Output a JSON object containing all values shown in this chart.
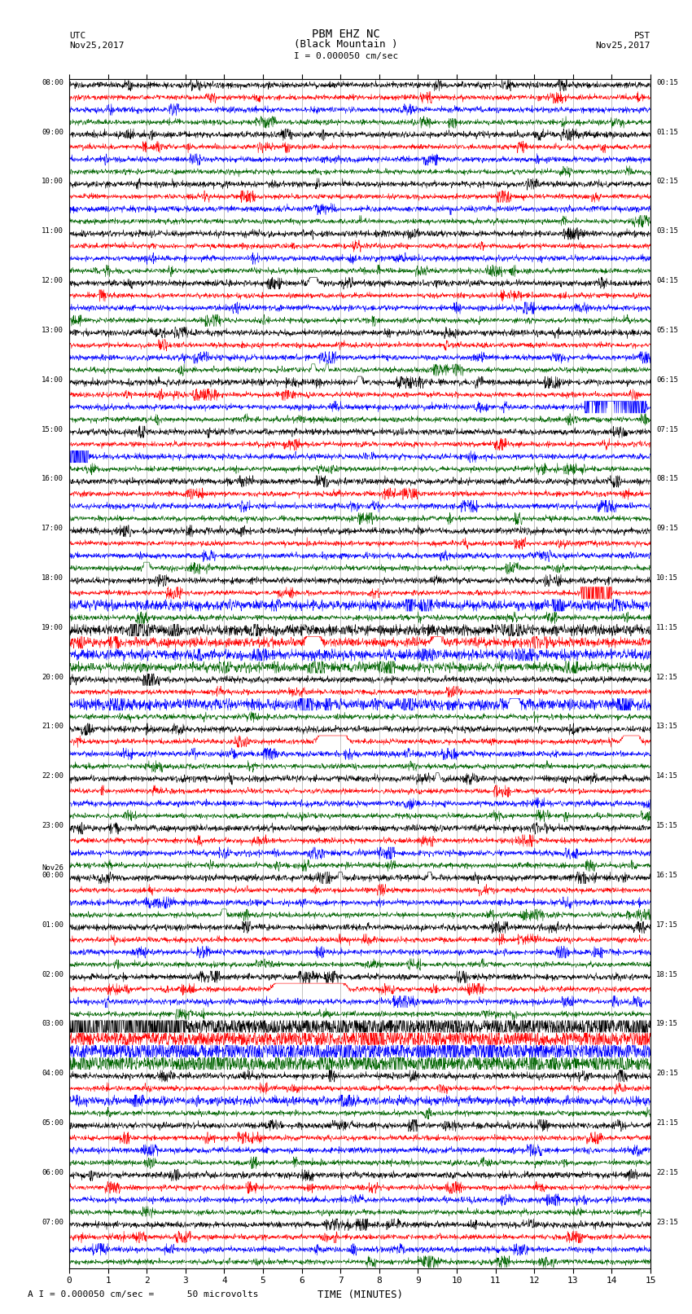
{
  "title_line1": "PBM EHZ NC",
  "title_line2": "(Black Mountain )",
  "scale_label": "I = 0.000050 cm/sec",
  "utc_header": "UTC",
  "utc_date": "Nov25,2017",
  "pst_header": "PST",
  "pst_date": "Nov25,2017",
  "xlabel": "TIME (MINUTES)",
  "footnote": "A I = 0.000050 cm/sec =      50 microvolts",
  "xlim": [
    0,
    15
  ],
  "xticks": [
    0,
    1,
    2,
    3,
    4,
    5,
    6,
    7,
    8,
    9,
    10,
    11,
    12,
    13,
    14,
    15
  ],
  "background_color": "#ffffff",
  "grid_color": "#aaaaaa",
  "trace_colors": [
    "black",
    "red",
    "blue",
    "darkgreen"
  ],
  "n_hour_blocks": 24,
  "traces_per_hour": 4,
  "utc_labels": [
    "08:00",
    "09:00",
    "10:00",
    "11:00",
    "12:00",
    "13:00",
    "14:00",
    "15:00",
    "16:00",
    "17:00",
    "18:00",
    "19:00",
    "20:00",
    "21:00",
    "22:00",
    "23:00",
    "Nov26\n00:00",
    "01:00",
    "02:00",
    "03:00",
    "04:00",
    "05:00",
    "06:00",
    "07:00"
  ],
  "pst_labels": [
    "00:15",
    "01:15",
    "02:15",
    "03:15",
    "04:15",
    "05:15",
    "06:15",
    "07:15",
    "08:15",
    "09:15",
    "10:15",
    "11:15",
    "12:15",
    "13:15",
    "14:15",
    "15:15",
    "16:15",
    "17:15",
    "18:15",
    "19:15",
    "20:15",
    "21:15",
    "22:15",
    "23:15"
  ]
}
